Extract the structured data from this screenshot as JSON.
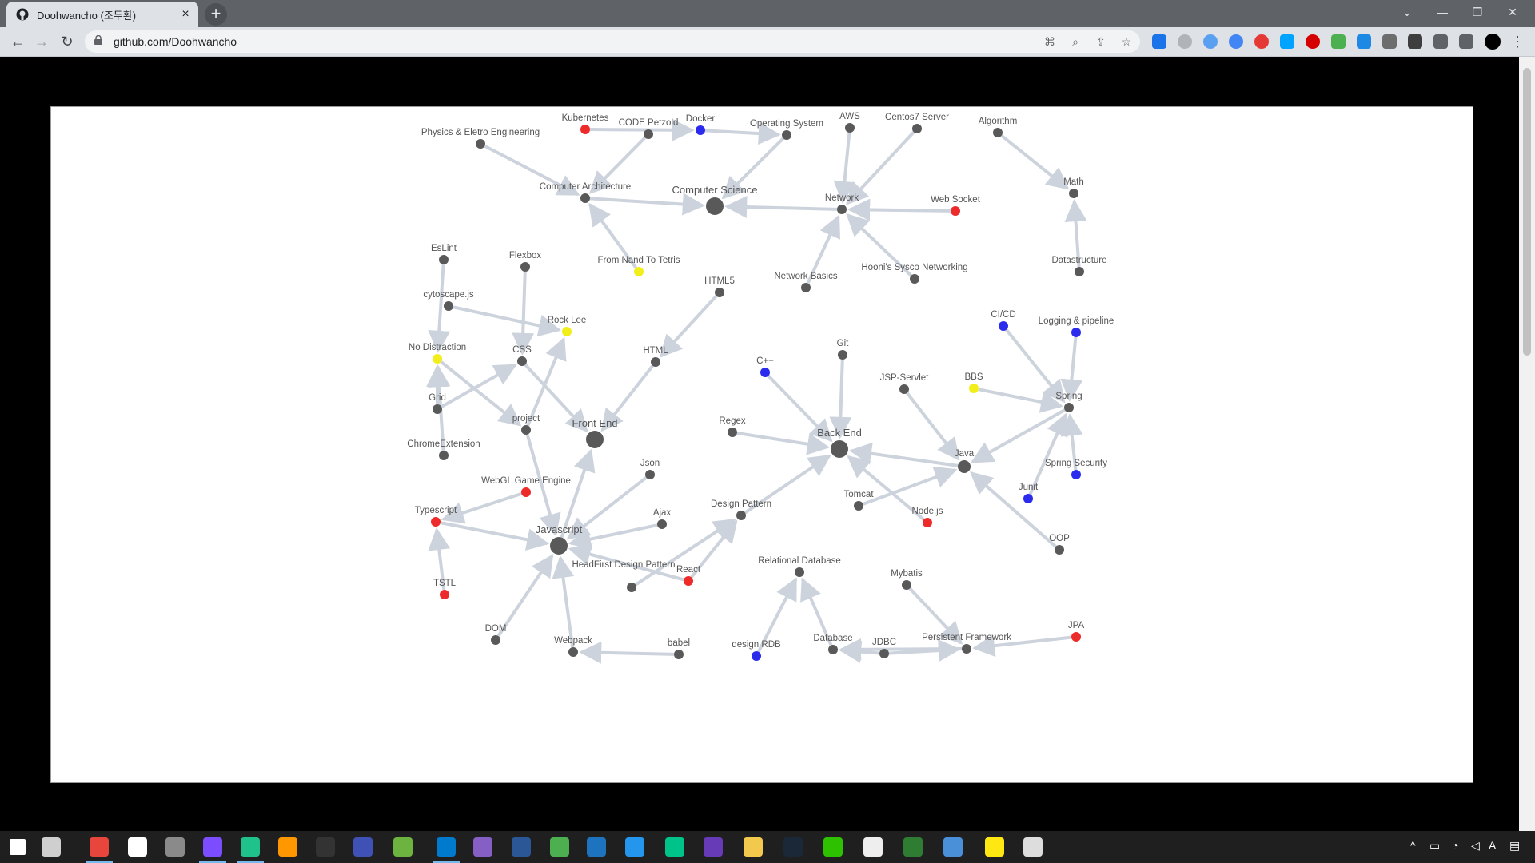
{
  "browser": {
    "tab_title": "Doohwancho (조두환)",
    "new_tab_label": "+",
    "close_tab_label": "×",
    "url": "github.com/Doohwancho"
  },
  "graph": {
    "nodes": [
      {
        "id": "kubernetes",
        "label": "Kubernetes",
        "color": "red"
      },
      {
        "id": "code-petzold",
        "label": "CODE Petzold",
        "color": "gray"
      },
      {
        "id": "docker",
        "label": "Docker",
        "color": "blue"
      },
      {
        "id": "operating-system",
        "label": "Operating System",
        "color": "gray"
      },
      {
        "id": "aws",
        "label": "AWS",
        "color": "gray"
      },
      {
        "id": "centos7-server",
        "label": "Centos7 Server",
        "color": "gray"
      },
      {
        "id": "algorithm",
        "label": "Algorithm",
        "color": "gray"
      },
      {
        "id": "physics",
        "label": "Physics & Eletro Engineering",
        "color": "gray"
      },
      {
        "id": "computer-architecture",
        "label": "Computer Architecture",
        "color": "gray"
      },
      {
        "id": "computer-science",
        "label": "Computer Science",
        "color": "gray",
        "big": true
      },
      {
        "id": "network",
        "label": "Network",
        "color": "gray"
      },
      {
        "id": "web-socket",
        "label": "Web Socket",
        "color": "red"
      },
      {
        "id": "math",
        "label": "Math",
        "color": "gray"
      },
      {
        "id": "eslint",
        "label": "EsLint",
        "color": "gray"
      },
      {
        "id": "flexbox",
        "label": "Flexbox",
        "color": "gray"
      },
      {
        "id": "nand2tetris",
        "label": "From Nand To Tetris",
        "color": "yellow"
      },
      {
        "id": "datastructure",
        "label": "Datastructure",
        "color": "gray"
      },
      {
        "id": "hooni",
        "label": "Hooni's Sysco Networking",
        "color": "gray"
      },
      {
        "id": "network-basics",
        "label": "Network Basics",
        "color": "gray"
      },
      {
        "id": "html5",
        "label": "HTML5",
        "color": "gray"
      },
      {
        "id": "cytoscape",
        "label": "cytoscape.js",
        "color": "gray"
      },
      {
        "id": "rock-lee",
        "label": "Rock Lee",
        "color": "yellow"
      },
      {
        "id": "cicd",
        "label": "CI/CD",
        "color": "blue"
      },
      {
        "id": "logging",
        "label": "Logging & pipeline",
        "color": "blue"
      },
      {
        "id": "no-distraction",
        "label": "No Distraction",
        "color": "yellow"
      },
      {
        "id": "css",
        "label": "CSS",
        "color": "gray"
      },
      {
        "id": "html",
        "label": "HTML",
        "color": "gray"
      },
      {
        "id": "git",
        "label": "Git",
        "color": "gray"
      },
      {
        "id": "cpp",
        "label": "C++",
        "color": "blue"
      },
      {
        "id": "jsp-servlet",
        "label": "JSP-Servlet",
        "color": "gray"
      },
      {
        "id": "bbs",
        "label": "BBS",
        "color": "yellow"
      },
      {
        "id": "spring",
        "label": "Spring",
        "color": "gray"
      },
      {
        "id": "grid",
        "label": "Grid",
        "color": "gray"
      },
      {
        "id": "project",
        "label": "project",
        "color": "gray"
      },
      {
        "id": "front-end",
        "label": "Front End",
        "color": "gray",
        "big": true
      },
      {
        "id": "regex",
        "label": "Regex",
        "color": "gray"
      },
      {
        "id": "back-end",
        "label": "Back End",
        "color": "gray",
        "big": true
      },
      {
        "id": "chrome-extension",
        "label": "ChromeExtension",
        "color": "gray"
      },
      {
        "id": "java",
        "label": "Java",
        "color": "gray",
        "mid": true
      },
      {
        "id": "spring-security",
        "label": "Spring Security",
        "color": "blue"
      },
      {
        "id": "json",
        "label": "Json",
        "color": "gray"
      },
      {
        "id": "webgl",
        "label": "WebGL Game Engine",
        "color": "red"
      },
      {
        "id": "junit",
        "label": "Junit",
        "color": "blue"
      },
      {
        "id": "typescript",
        "label": "Typescript",
        "color": "red"
      },
      {
        "id": "ajax",
        "label": "Ajax",
        "color": "gray"
      },
      {
        "id": "design-pattern",
        "label": "Design Pattern",
        "color": "gray"
      },
      {
        "id": "tomcat",
        "label": "Tomcat",
        "color": "gray"
      },
      {
        "id": "nodejs",
        "label": "Node.js",
        "color": "red"
      },
      {
        "id": "oop",
        "label": "OOP",
        "color": "gray"
      },
      {
        "id": "javascript",
        "label": "Javascript",
        "color": "gray",
        "big": true
      },
      {
        "id": "relational-db",
        "label": "Relational Database",
        "color": "gray"
      },
      {
        "id": "headfirst",
        "label": "HeadFirst Design Pattern",
        "color": "gray"
      },
      {
        "id": "react",
        "label": "React",
        "color": "red"
      },
      {
        "id": "mybatis",
        "label": "Mybatis",
        "color": "gray"
      },
      {
        "id": "tstl",
        "label": "TSTL",
        "color": "red"
      },
      {
        "id": "dom",
        "label": "DOM",
        "color": "gray"
      },
      {
        "id": "webpack",
        "label": "Webpack",
        "color": "gray"
      },
      {
        "id": "babel",
        "label": "babel",
        "color": "gray"
      },
      {
        "id": "design-rdb",
        "label": "design RDB",
        "color": "blue"
      },
      {
        "id": "database",
        "label": "Database",
        "color": "gray"
      },
      {
        "id": "jdbc",
        "label": "JDBC",
        "color": "gray"
      },
      {
        "id": "persistent-framework",
        "label": "Persistent Framework",
        "color": "gray"
      },
      {
        "id": "jpa",
        "label": "JPA",
        "color": "red"
      }
    ],
    "edges": [
      [
        "kubernetes",
        "docker"
      ],
      [
        "code-petzold",
        "computer-architecture"
      ],
      [
        "docker",
        "operating-system"
      ],
      [
        "operating-system",
        "computer-science"
      ],
      [
        "physics",
        "computer-architecture"
      ],
      [
        "computer-architecture",
        "computer-science"
      ],
      [
        "network",
        "computer-science"
      ],
      [
        "aws",
        "network"
      ],
      [
        "centos7-server",
        "network"
      ],
      [
        "web-socket",
        "network"
      ],
      [
        "network-basics",
        "network"
      ],
      [
        "hooni",
        "network"
      ],
      [
        "algorithm",
        "math"
      ],
      [
        "datastructure",
        "math"
      ],
      [
        "nand2tetris",
        "computer-architecture"
      ],
      [
        "eslint",
        "no-distraction"
      ],
      [
        "flexbox",
        "css"
      ],
      [
        "cytoscape",
        "rock-lee"
      ],
      [
        "project",
        "rock-lee"
      ],
      [
        "grid",
        "css"
      ],
      [
        "grid",
        "no-distraction"
      ],
      [
        "chrome-extension",
        "no-distraction"
      ],
      [
        "no-distraction",
        "project"
      ],
      [
        "css",
        "front-end"
      ],
      [
        "html5",
        "html"
      ],
      [
        "html",
        "front-end"
      ],
      [
        "javascript",
        "front-end"
      ],
      [
        "project",
        "javascript"
      ],
      [
        "webgl",
        "typescript"
      ],
      [
        "typescript",
        "javascript"
      ],
      [
        "tstl",
        "typescript"
      ],
      [
        "json",
        "javascript"
      ],
      [
        "ajax",
        "javascript"
      ],
      [
        "react",
        "javascript"
      ],
      [
        "dom",
        "javascript"
      ],
      [
        "webpack",
        "javascript"
      ],
      [
        "babel",
        "webpack"
      ],
      [
        "react",
        "design-pattern"
      ],
      [
        "headfirst",
        "design-pattern"
      ],
      [
        "design-pattern",
        "back-end"
      ],
      [
        "regex",
        "back-end"
      ],
      [
        "git",
        "back-end"
      ],
      [
        "cpp",
        "back-end"
      ],
      [
        "java",
        "back-end"
      ],
      [
        "nodejs",
        "back-end"
      ],
      [
        "tomcat",
        "java"
      ],
      [
        "jsp-servlet",
        "java"
      ],
      [
        "spring",
        "java"
      ],
      [
        "oop",
        "java"
      ],
      [
        "bbs",
        "spring"
      ],
      [
        "cicd",
        "spring"
      ],
      [
        "logging",
        "spring"
      ],
      [
        "spring-security",
        "spring"
      ],
      [
        "junit",
        "spring"
      ],
      [
        "design-rdb",
        "relational-db"
      ],
      [
        "database",
        "relational-db"
      ],
      [
        "jdbc",
        "database"
      ],
      [
        "persistent-framework",
        "database"
      ],
      [
        "mybatis",
        "persistent-framework"
      ],
      [
        "jdbc",
        "persistent-framework"
      ],
      [
        "jpa",
        "persistent-framework"
      ]
    ]
  },
  "colors": {
    "gray": "#595959",
    "red": "#ee2b2b",
    "blue": "#2b2bee",
    "yellow": "#f2ee1c",
    "edge": "#cdd3dc",
    "label": "#555555"
  },
  "taskbar": {
    "icons": [
      "windows-start-icon",
      "task-view-icon",
      "chrome-icon",
      "notion-icon",
      "app-icon",
      "obsidian-icon",
      "gitkraken-icon",
      "sublime-icon",
      "terminal-icon",
      "eclipse-icon",
      "spring-tool-icon",
      "vscode-icon",
      "visual-studio-icon",
      "sql-icon",
      "file-icon",
      "virtualbox-icon",
      "docker-icon",
      "gpt-icon",
      "clock-app-icon",
      "explorer-icon",
      "steam-icon",
      "wechat-icon",
      "kindle-icon",
      "wox-icon",
      "remote-icon",
      "kakaotalk-icon",
      "desktop-icon"
    ],
    "tray_ime": "A"
  }
}
